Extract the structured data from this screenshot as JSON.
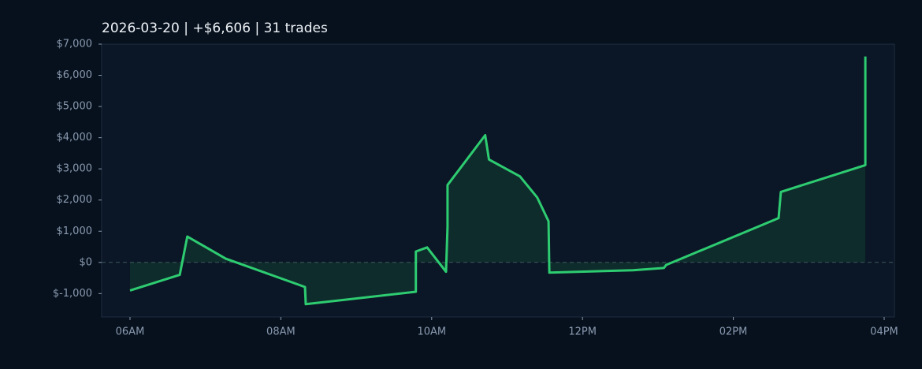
{
  "chart_data": {
    "type": "line",
    "title": "2026-03-20  |  +$6,606  |  31 trades",
    "x": [
      6.0,
      6.66,
      6.76,
      7.27,
      8.32,
      8.33,
      9.79,
      9.79,
      9.94,
      10.19,
      10.21,
      10.21,
      10.71,
      10.76,
      11.17,
      11.4,
      11.55,
      11.56,
      12.67,
      13.08,
      13.11,
      14.6,
      14.63,
      15.75,
      15.75
    ],
    "values": [
      -900,
      -400,
      830,
      120,
      -790,
      -1340,
      -940,
      350,
      480,
      -300,
      1140,
      2480,
      4080,
      3300,
      2760,
      2080,
      1320,
      -330,
      -250,
      -180,
      -80,
      1420,
      2260,
      3120,
      6606
    ],
    "color": "#2ecc71",
    "fill_color": "#10302e",
    "xlim": [
      5.624,
      16.136
    ],
    "xticks": [
      {
        "value": 6,
        "label": "06AM"
      },
      {
        "value": 8,
        "label": "08AM"
      },
      {
        "value": 10,
        "label": "10AM"
      },
      {
        "value": 12,
        "label": "12PM"
      },
      {
        "value": 14,
        "label": "02PM"
      },
      {
        "value": 16,
        "label": "04PM"
      }
    ],
    "ylim": [
      -1750,
      7000
    ],
    "yticks": [
      {
        "value": -1000,
        "label": "$-1,000"
      },
      {
        "value": 0,
        "label": "$0"
      },
      {
        "value": 1000,
        "label": "$1,000"
      },
      {
        "value": 2000,
        "label": "$2,000"
      },
      {
        "value": 3000,
        "label": "$3,000"
      },
      {
        "value": 4000,
        "label": "$4,000"
      },
      {
        "value": 5000,
        "label": "$5,000"
      },
      {
        "value": 6000,
        "label": "$6,000"
      },
      {
        "value": 7000,
        "label": "$7,000"
      }
    ],
    "zero_line": true,
    "grid": false
  }
}
